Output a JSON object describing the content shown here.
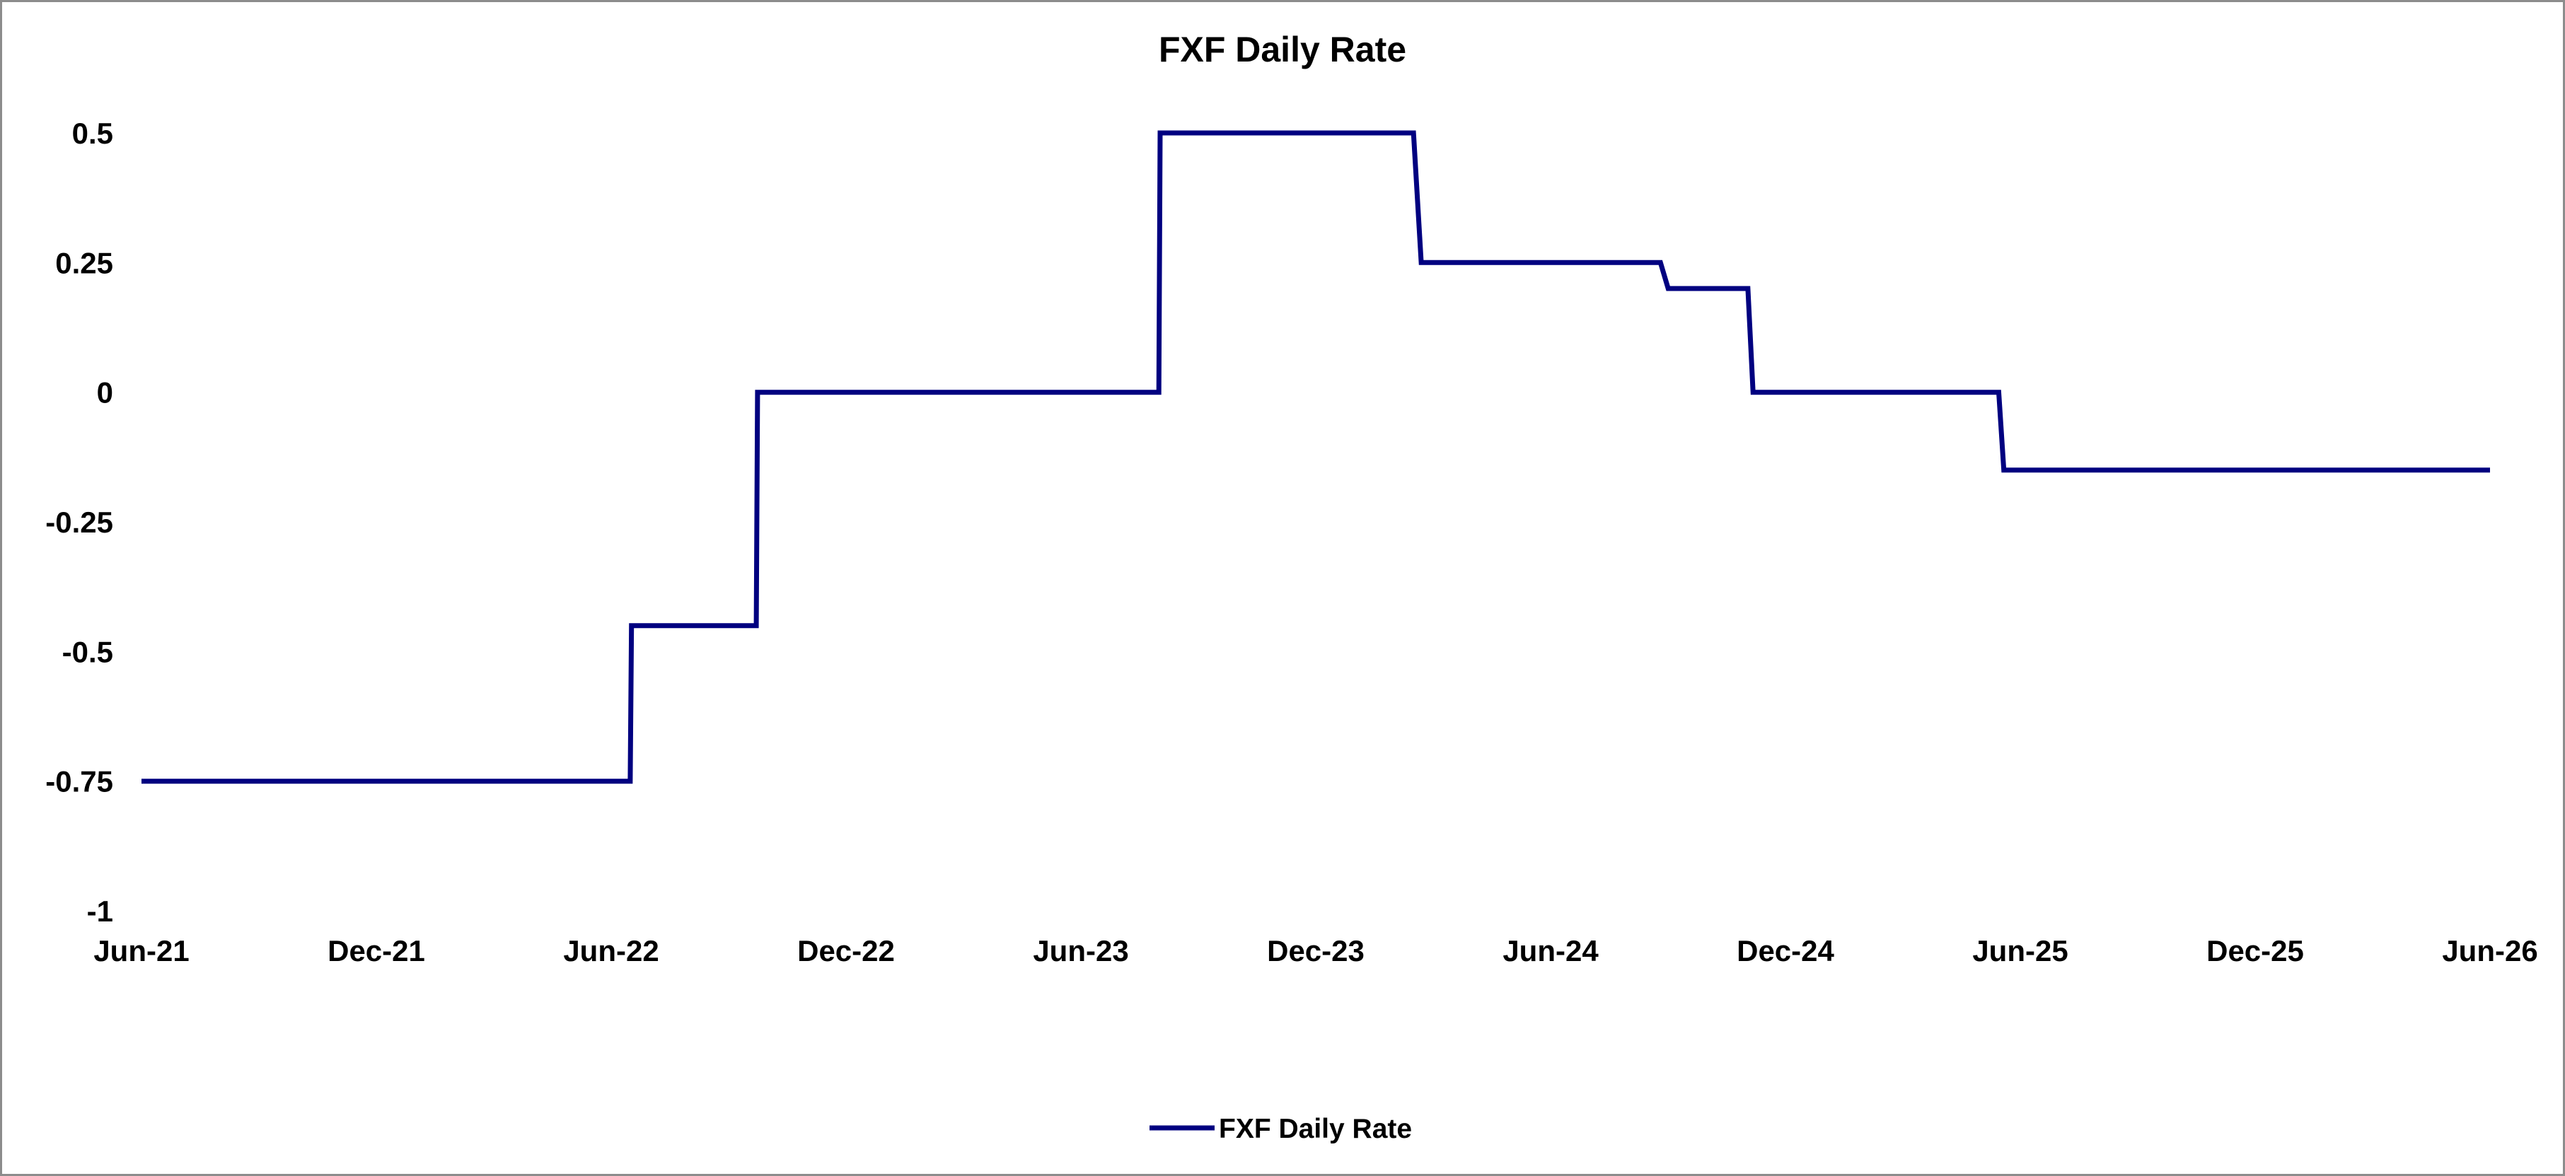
{
  "chart_data": {
    "type": "line",
    "title": "FXF Daily Rate",
    "xlabel": "",
    "ylabel": "",
    "x_ticks": [
      "Jun-21",
      "Dec-21",
      "Jun-22",
      "Dec-22",
      "Jun-23",
      "Dec-23",
      "Jun-24",
      "Dec-24",
      "Jun-25",
      "Dec-25",
      "Jun-26"
    ],
    "x_range": [
      "2021-06-01",
      "2026-06-01"
    ],
    "y_ticks": [
      "0.5",
      "0.25",
      "0",
      "-0.25",
      "-0.5",
      "-0.75",
      "-1"
    ],
    "ylim": [
      -1,
      0.5
    ],
    "grid": false,
    "legend_position": "bottom",
    "series": [
      {
        "name": "FXF Daily Rate",
        "color": "#000080",
        "step": true,
        "points": [
          {
            "x": "2021-06-01",
            "y": -0.75
          },
          {
            "x": "2022-06-16",
            "y": -0.75
          },
          {
            "x": "2022-06-17",
            "y": -0.45
          },
          {
            "x": "2022-09-22",
            "y": -0.45
          },
          {
            "x": "2022-09-23",
            "y": 0
          },
          {
            "x": "2023-08-01",
            "y": 0
          },
          {
            "x": "2023-08-02",
            "y": 0.5
          },
          {
            "x": "2024-02-15",
            "y": 0.5
          },
          {
            "x": "2024-02-21",
            "y": 0.25
          },
          {
            "x": "2024-08-25",
            "y": 0.25
          },
          {
            "x": "2024-08-31",
            "y": 0.2
          },
          {
            "x": "2024-11-01",
            "y": 0.2
          },
          {
            "x": "2024-11-05",
            "y": 0
          },
          {
            "x": "2025-05-15",
            "y": 0
          },
          {
            "x": "2025-05-19",
            "y": -0.15
          },
          {
            "x": "2026-06-01",
            "y": -0.15
          }
        ]
      }
    ]
  }
}
